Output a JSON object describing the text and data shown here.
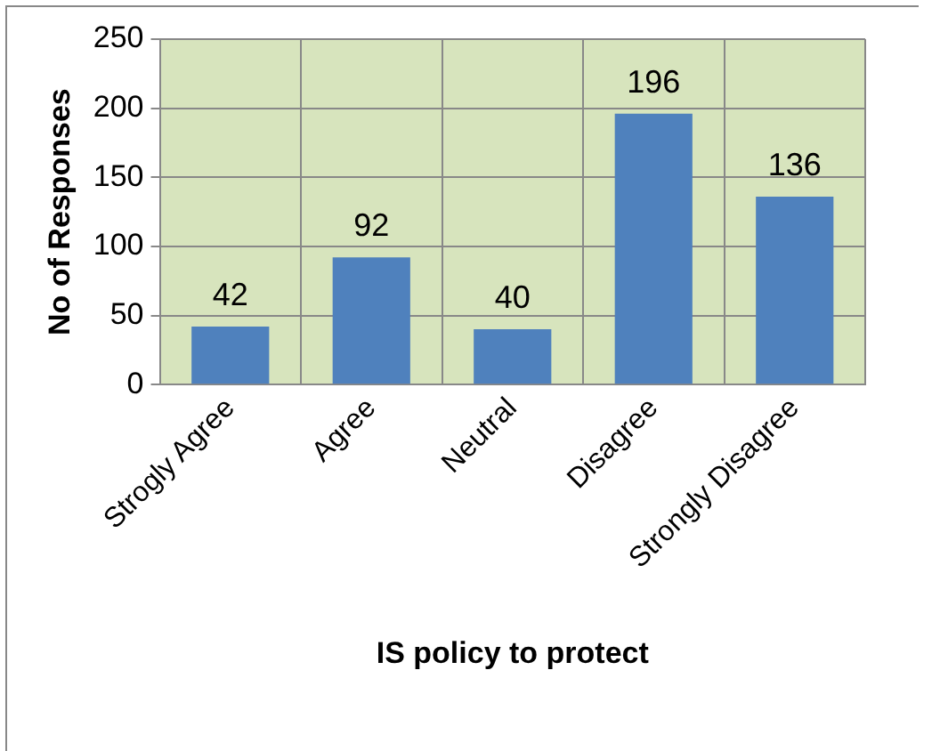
{
  "chart_data": {
    "type": "bar",
    "xlabel": "IS policy to protect",
    "ylabel": "No of Responses",
    "categories": [
      "Strogly Agree",
      "Agree",
      "Neutral",
      "Disagree",
      "Strongly Disagree"
    ],
    "values": [
      42,
      92,
      40,
      196,
      136
    ],
    "color": "#4f81bd",
    "ylim": [
      0,
      250
    ],
    "yticks": [
      0,
      50,
      100,
      150,
      200,
      250
    ],
    "grid": true,
    "data_labels": true,
    "legend": false
  }
}
